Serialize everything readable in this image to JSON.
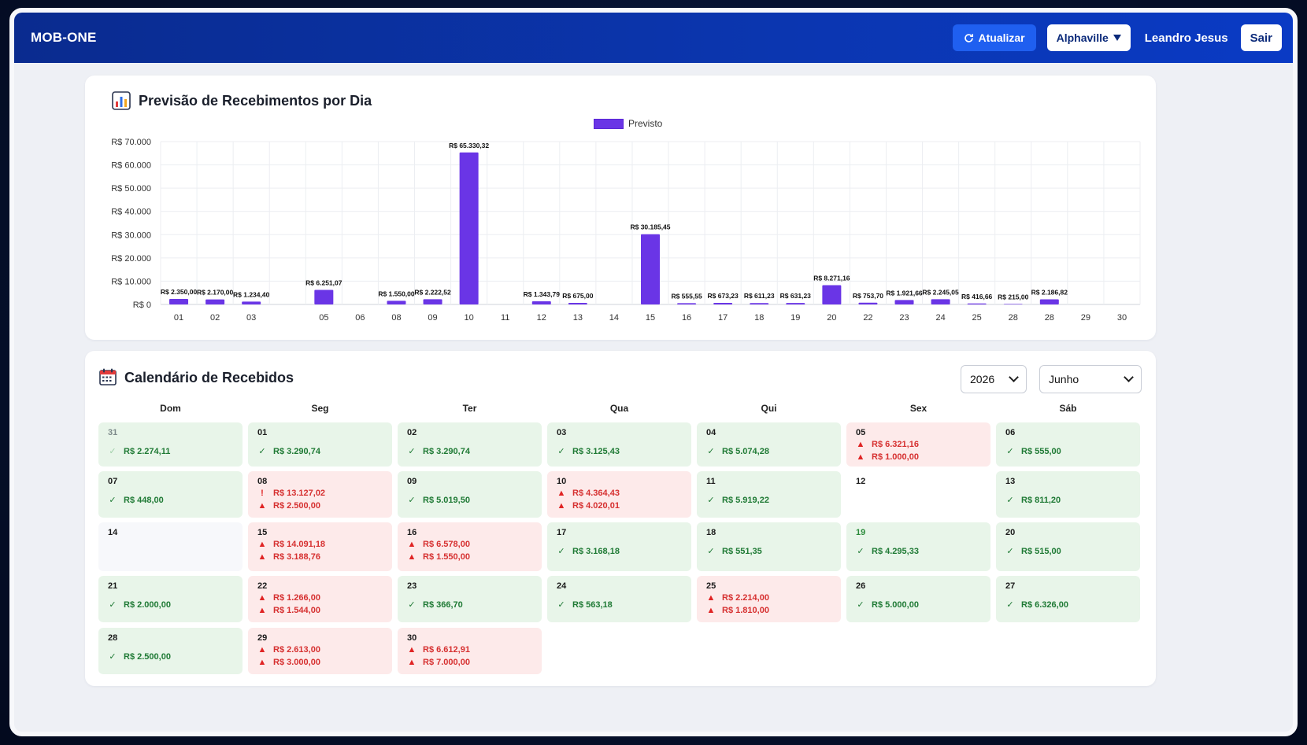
{
  "topbar": {
    "brand": "MOB-ONE",
    "refresh_label": "Atualizar",
    "unit_selected": "Alphaville",
    "user_name": "Leandro Jesus",
    "exit_label": "Sair"
  },
  "chart": {
    "title": "Previsão de Recebimentos por Dia",
    "legend": "Previsto"
  },
  "chart_data": {
    "type": "bar",
    "series_name": "Previsto",
    "color": "#6a35e6",
    "ylim": [
      0,
      70000
    ],
    "yticks": [
      {
        "value": 0,
        "label": "R$ 0"
      },
      {
        "value": 10000,
        "label": "R$ 10.000"
      },
      {
        "value": 20000,
        "label": "R$ 20.000"
      },
      {
        "value": 30000,
        "label": "R$ 30.000"
      },
      {
        "value": 40000,
        "label": "R$ 40.000"
      },
      {
        "value": 50000,
        "label": "R$ 50.000"
      },
      {
        "value": 60000,
        "label": "R$ 60.000"
      },
      {
        "value": 70000,
        "label": "R$ 70.000"
      }
    ],
    "categories": [
      "01",
      "02",
      "03",
      "",
      "05",
      "06",
      "08",
      "09",
      "10",
      "11",
      "12",
      "13",
      "14",
      "15",
      "16",
      "17",
      "18",
      "19",
      "20",
      "22",
      "23",
      "24",
      "25",
      "28",
      "28",
      "29",
      "30"
    ],
    "values": [
      2350,
      2170,
      1234.4,
      null,
      6251.07,
      null,
      1550,
      2222.52,
      65330.32,
      null,
      1343.79,
      675,
      null,
      30185.45,
      555.55,
      673.23,
      611.23,
      631.23,
      8271.16,
      753.7,
      1921.66,
      2245.05,
      416.66,
      215,
      2186.82,
      null,
      null
    ],
    "value_labels": [
      "R$ 2.350,00",
      "R$ 2.170,00",
      "R$ 1.234,40",
      "",
      "R$ 6.251,07",
      "",
      "R$ 1.550,00",
      "R$ 2.222,52",
      "R$ 65.330,32",
      "",
      "R$ 1.343,79",
      "R$ 675,00",
      "",
      "R$ 30.185,45",
      "R$ 555,55",
      "R$ 673,23",
      "R$ 611,23",
      "R$ 631,23",
      "R$ 8.271,16",
      "R$ 753,70",
      "R$ 1.921,66",
      "R$ 2.245,05",
      "R$ 416,66",
      "R$ 215,00",
      "R$ 2.186,82",
      "",
      ""
    ],
    "grid": true,
    "legend_position": "top-center"
  },
  "calendar": {
    "title": "Calendário de Recebidos",
    "year": "2026",
    "month": "Junho",
    "weekdays": [
      "Dom",
      "Seg",
      "Ter",
      "Qua",
      "Qui",
      "Sex",
      "Sáb"
    ],
    "weeks": [
      [
        {
          "day": "31",
          "status": "ok",
          "muted": true,
          "entries": [
            {
              "type": "ok",
              "amount": "R$ 2.274,11"
            }
          ]
        },
        {
          "day": "01",
          "status": "ok",
          "entries": [
            {
              "type": "ok",
              "amount": "R$ 3.290,74"
            }
          ]
        },
        {
          "day": "02",
          "status": "ok",
          "entries": [
            {
              "type": "ok",
              "amount": "R$ 3.290,74"
            }
          ]
        },
        {
          "day": "03",
          "status": "ok",
          "entries": [
            {
              "type": "ok",
              "amount": "R$ 3.125,43"
            }
          ]
        },
        {
          "day": "04",
          "status": "ok",
          "entries": [
            {
              "type": "ok",
              "amount": "R$ 5.074,28"
            }
          ]
        },
        {
          "day": "05",
          "status": "alert",
          "entries": [
            {
              "type": "warn",
              "amount": "R$ 6.321,16"
            },
            {
              "type": "warn",
              "amount": "R$ 1.000,00"
            }
          ]
        },
        {
          "day": "06",
          "status": "ok",
          "entries": [
            {
              "type": "ok",
              "amount": "R$ 555,00"
            }
          ]
        }
      ],
      [
        {
          "day": "07",
          "status": "ok",
          "entries": [
            {
              "type": "ok",
              "amount": "R$ 448,00"
            }
          ]
        },
        {
          "day": "08",
          "status": "alert",
          "entries": [
            {
              "type": "exclaim",
              "amount": "R$ 13.127,02"
            },
            {
              "type": "warn",
              "amount": "R$ 2.500,00"
            }
          ]
        },
        {
          "day": "09",
          "status": "ok",
          "entries": [
            {
              "type": "ok",
              "amount": "R$ 5.019,50"
            }
          ]
        },
        {
          "day": "10",
          "status": "alert",
          "entries": [
            {
              "type": "warn",
              "amount": "R$ 4.364,43"
            },
            {
              "type": "warn",
              "amount": "R$ 4.020,01"
            }
          ]
        },
        {
          "day": "11",
          "status": "ok",
          "entries": [
            {
              "type": "ok",
              "amount": "R$ 5.919,22"
            }
          ]
        },
        {
          "day": "12",
          "status": "empty",
          "entries": []
        },
        {
          "day": "13",
          "status": "ok",
          "entries": [
            {
              "type": "ok",
              "amount": "R$ 811,20"
            }
          ]
        }
      ],
      [
        {
          "day": "14",
          "status": "blank",
          "entries": []
        },
        {
          "day": "15",
          "status": "alert",
          "entries": [
            {
              "type": "warn",
              "amount": "R$ 14.091,18"
            },
            {
              "type": "warn",
              "amount": "R$ 3.188,76"
            }
          ]
        },
        {
          "day": "16",
          "status": "alert",
          "entries": [
            {
              "type": "warn",
              "amount": "R$ 6.578,00"
            },
            {
              "type": "warn",
              "amount": "R$ 1.550,00"
            }
          ]
        },
        {
          "day": "17",
          "status": "ok",
          "entries": [
            {
              "type": "ok",
              "amount": "R$ 3.168,18"
            }
          ]
        },
        {
          "day": "18",
          "status": "ok",
          "entries": [
            {
              "type": "ok",
              "amount": "R$ 551,35"
            }
          ]
        },
        {
          "day": "19",
          "status": "ok",
          "green": true,
          "entries": [
            {
              "type": "ok",
              "amount": "R$ 4.295,33"
            }
          ]
        },
        {
          "day": "20",
          "status": "ok",
          "entries": [
            {
              "type": "ok",
              "amount": "R$ 515,00"
            }
          ]
        }
      ],
      [
        {
          "day": "21",
          "status": "ok",
          "entries": [
            {
              "type": "ok",
              "amount": "R$ 2.000,00"
            }
          ]
        },
        {
          "day": "22",
          "status": "alert",
          "entries": [
            {
              "type": "warn",
              "amount": "R$ 1.266,00"
            },
            {
              "type": "warn",
              "amount": "R$ 1.544,00"
            }
          ]
        },
        {
          "day": "23",
          "status": "ok",
          "entries": [
            {
              "type": "ok",
              "amount": "R$ 366,70"
            }
          ]
        },
        {
          "day": "24",
          "status": "ok",
          "entries": [
            {
              "type": "ok",
              "amount": "R$ 563,18"
            }
          ]
        },
        {
          "day": "25",
          "status": "alert",
          "entries": [
            {
              "type": "warn",
              "amount": "R$ 2.214,00"
            },
            {
              "type": "warn",
              "amount": "R$ 1.810,00"
            }
          ]
        },
        {
          "day": "26",
          "status": "ok",
          "entries": [
            {
              "type": "ok",
              "amount": "R$ 5.000,00"
            }
          ]
        },
        {
          "day": "27",
          "status": "ok",
          "entries": [
            {
              "type": "ok",
              "amount": "R$ 6.326,00"
            }
          ]
        }
      ],
      [
        {
          "day": "28",
          "status": "ok",
          "entries": [
            {
              "type": "ok",
              "amount": "R$ 2.500,00"
            }
          ]
        },
        {
          "day": "29",
          "status": "alert",
          "entries": [
            {
              "type": "warn",
              "amount": "R$ 2.613,00"
            },
            {
              "type": "warn",
              "amount": "R$ 3.000,00"
            }
          ]
        },
        {
          "day": "30",
          "status": "alert",
          "entries": [
            {
              "type": "warn",
              "amount": "R$ 6.612,91"
            },
            {
              "type": "warn",
              "amount": "R$ 7.000,00"
            }
          ]
        }
      ]
    ]
  },
  "colors": {
    "topbar": "#0b36b0",
    "bar": "#6a35e6",
    "ok_bg": "#e8f5e9",
    "ok_text": "#1f7a35",
    "alert_bg": "#fdeaea",
    "alert_text": "#d63030"
  },
  "icons": {
    "refresh": "refresh-icon",
    "chart": "bar-chart-icon",
    "calendar": "calendar-icon",
    "ok": "check-icon",
    "warn": "warning-triangle-icon",
    "exclaim": "exclamation-icon"
  }
}
